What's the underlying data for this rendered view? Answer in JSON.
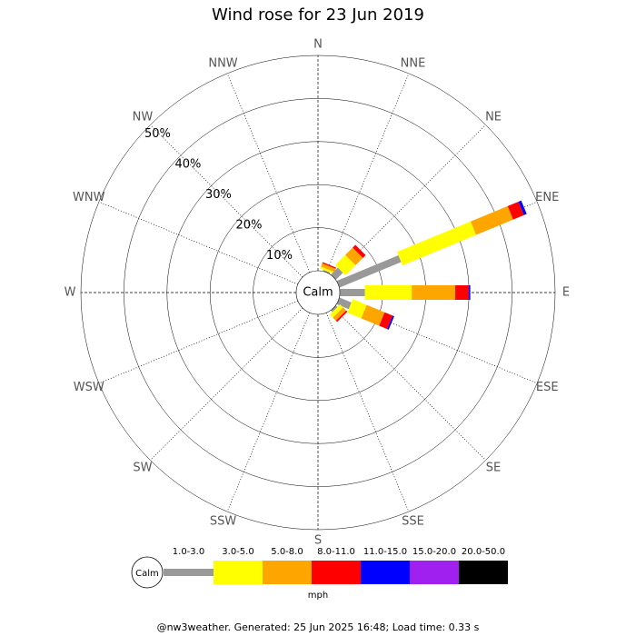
{
  "chart_data": {
    "type": "windrose",
    "title": "Wind rose for 23 Jun 2019",
    "directions": [
      "N",
      "NNE",
      "NE",
      "ENE",
      "E",
      "ESE",
      "SE",
      "SSE",
      "S",
      "SSW",
      "SW",
      "WSW",
      "W",
      "WNW",
      "NW",
      "NNW"
    ],
    "calm_label": "Calm",
    "rlim": [
      0,
      50
    ],
    "rticks": [
      {
        "value": 10,
        "label": "10%"
      },
      {
        "value": 20,
        "label": "20%"
      },
      {
        "value": 30,
        "label": "30%"
      },
      {
        "value": 40,
        "label": "40%"
      },
      {
        "value": 50,
        "label": "50%"
      }
    ],
    "series": [
      {
        "name": "1.0-3.0",
        "color": "#999999",
        "values": [
          0,
          0.3,
          2.3,
          15.5,
          5.8,
          3,
          0.5,
          0,
          0,
          0,
          0,
          0,
          0,
          0,
          0,
          0
        ]
      },
      {
        "name": "3.0-5.0",
        "color": "#ffff00",
        "values": [
          0,
          0.5,
          3.3,
          18.5,
          10.9,
          3.5,
          1,
          0,
          0,
          0,
          0,
          0,
          0,
          0,
          0,
          0
        ]
      },
      {
        "name": "5.0-8.0",
        "color": "#ffa500",
        "values": [
          0,
          0.8,
          2.4,
          9.3,
          10.1,
          4.5,
          1,
          0,
          0,
          0,
          0,
          0,
          0,
          0,
          0,
          0
        ]
      },
      {
        "name": "8.0-11.0",
        "color": "#ff0000",
        "values": [
          0,
          0.3,
          0.9,
          2.7,
          3.1,
          2,
          0.4,
          0,
          0,
          0,
          0,
          0,
          0,
          0,
          0,
          0
        ]
      },
      {
        "name": "11.0-15.0",
        "color": "#0000ff",
        "values": [
          0,
          0,
          0,
          0.7,
          0.4,
          0.4,
          0,
          0,
          0,
          0,
          0,
          0,
          0,
          0,
          0,
          0
        ]
      },
      {
        "name": "15.0-20.0",
        "color": "#a020f0",
        "values": [
          0,
          0,
          0,
          0,
          0,
          0,
          0,
          0,
          0,
          0,
          0,
          0,
          0,
          0,
          0,
          0
        ]
      },
      {
        "name": "20.0-50.0",
        "color": "#000000",
        "values": [
          0,
          0,
          0,
          0,
          0,
          0,
          0,
          0,
          0,
          0,
          0,
          0,
          0,
          0,
          0,
          0
        ]
      }
    ],
    "legend_unit": "mph",
    "footer": "@nw3weather. Generated: 25 Jun 2025 16:48; Load time: 0.33 s"
  }
}
